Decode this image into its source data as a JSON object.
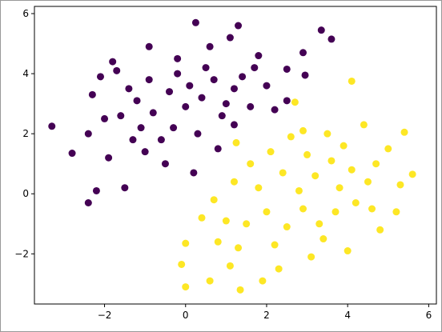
{
  "chart_data": {
    "type": "scatter",
    "xlim": [
      -3.73,
      6.19
    ],
    "ylim": [
      -3.67,
      6.24
    ],
    "xticks": [
      {
        "value": -2,
        "label": "−2"
      },
      0,
      2,
      4,
      6
    ],
    "yticks": [
      {
        "value": -2,
        "label": "−2"
      },
      0,
      2,
      4,
      6
    ],
    "series": [
      {
        "color": "#440154",
        "x": [
          -3.3,
          -2.8,
          -2.4,
          -2.2,
          -1.5,
          0.25,
          1.3,
          3.35,
          3.6,
          2.9,
          2.5,
          2.95,
          2.5,
          -2.3,
          -2.1,
          -1.8,
          -1.7,
          -0.9,
          -0.2,
          0.6,
          1.1,
          1.8,
          2.0,
          1.6,
          1.2,
          0.8,
          0.2,
          -0.5,
          -1.0,
          -1.9,
          -2.4,
          -1.6,
          -1.2,
          -0.8,
          -0.4,
          0,
          0.4,
          0.7,
          1.0,
          -0.3,
          0.3,
          -0.9,
          0.5,
          -1.4,
          1.4,
          -0.6,
          -1.1,
          0.9,
          2.2,
          1.7,
          -2.0,
          0.1,
          -0.2,
          1.2,
          -1.3
        ],
        "values": [
          2.25,
          1.35,
          -0.3,
          0.1,
          0.2,
          5.7,
          5.6,
          5.45,
          5.15,
          4.7,
          4.15,
          3.95,
          3.1,
          3.3,
          3.9,
          4.4,
          4.1,
          4.9,
          4.5,
          4.9,
          5.2,
          4.6,
          3.6,
          2.9,
          2.3,
          1.5,
          0.7,
          1.0,
          1.4,
          1.2,
          2.0,
          2.6,
          3.1,
          2.7,
          3.4,
          2.9,
          3.2,
          3.8,
          3.0,
          2.2,
          2.0,
          3.8,
          4.2,
          3.5,
          3.9,
          1.8,
          2.2,
          2.6,
          2.8,
          4.2,
          2.5,
          3.6,
          4.0,
          3.5,
          1.8
        ]
      },
      {
        "color": "#fde725",
        "x": [
          0,
          -0.1,
          0,
          1.35,
          0.6,
          5.6,
          5.4,
          4.1,
          1.25,
          2.7,
          2.9,
          3.5,
          4.4,
          5.0,
          5.3,
          5.2,
          4.8,
          4.0,
          3.1,
          2.3,
          1.9,
          1.1,
          0.8,
          0.4,
          0.7,
          1.2,
          1.6,
          2.1,
          1.8,
          2.4,
          2.8,
          3.2,
          3.6,
          4.1,
          4.5,
          4.2,
          3.7,
          3.3,
          2.9,
          2.5,
          2.0,
          1.5,
          1.3,
          2.2,
          3.0,
          3.9,
          4.7,
          3.4,
          2.6,
          3.8,
          1.0,
          4.6
        ],
        "values": [
          -3.1,
          -2.35,
          -1.65,
          -3.2,
          -2.9,
          0.65,
          2.05,
          3.75,
          1.7,
          3.05,
          2.1,
          2.0,
          2.3,
          1.5,
          0.3,
          -0.6,
          -1.2,
          -1.9,
          -2.1,
          -2.5,
          -2.9,
          -2.4,
          -1.6,
          -0.8,
          -0.2,
          0.4,
          1.0,
          1.4,
          0.2,
          0.7,
          0.1,
          0.6,
          1.1,
          0.8,
          0.4,
          -0.3,
          -0.6,
          -1.0,
          -0.5,
          -1.1,
          -0.6,
          -1.0,
          -1.8,
          -1.7,
          1.3,
          1.6,
          1.0,
          -1.5,
          1.9,
          0.2,
          -0.9,
          -0.5
        ]
      }
    ]
  }
}
